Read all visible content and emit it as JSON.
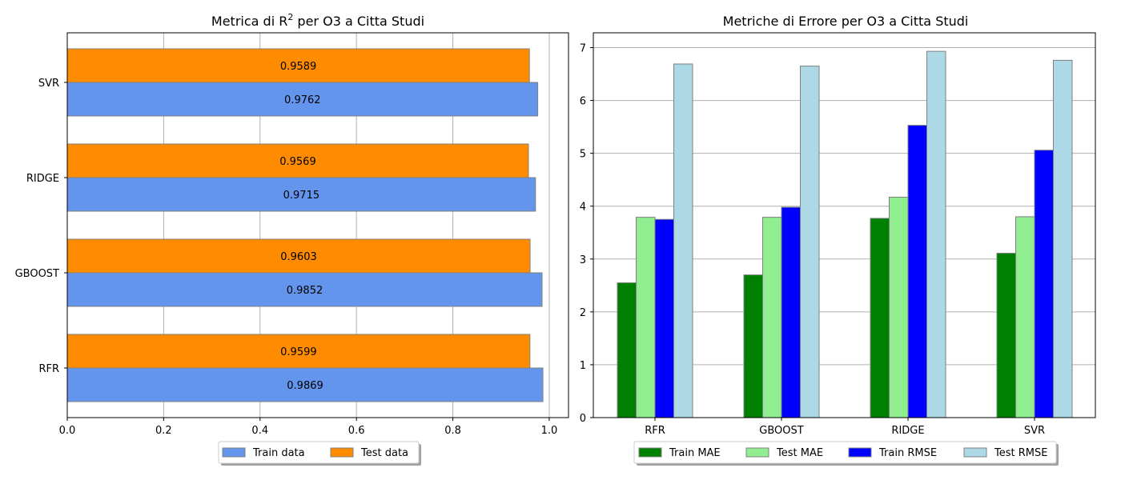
{
  "charts": [
    {
      "title_main": "Metrica di R",
      "title_sup": "2",
      "title_rest": " per O3 a Citta Studi",
      "chart_data": {
        "type": "bar",
        "orientation": "horizontal",
        "categories": [
          "RFR",
          "GBOOST",
          "RIDGE",
          "SVR"
        ],
        "series": [
          {
            "name": "Train data",
            "color": "#6495ed",
            "values": [
              0.9869,
              0.9852,
              0.9715,
              0.9762
            ],
            "labels": [
              "0.9869",
              "0.9852",
              "0.9715",
              "0.9762"
            ]
          },
          {
            "name": "Test data",
            "color": "#ff8c00",
            "values": [
              0.9599,
              0.9603,
              0.9569,
              0.9589
            ],
            "labels": [
              "0.9599",
              "0.9603",
              "0.9569",
              "0.9589"
            ]
          }
        ],
        "xlim": [
          0,
          1.04
        ],
        "xticks": [
          "0.0",
          "0.2",
          "0.4",
          "0.6",
          "0.8",
          "1.0"
        ],
        "grid": true,
        "legend": "bottom-center"
      }
    },
    {
      "title": "Metriche di Errore per O3 a Citta Studi",
      "chart_data": {
        "type": "bar",
        "categories": [
          "RFR",
          "GBOOST",
          "RIDGE",
          "SVR"
        ],
        "series": [
          {
            "name": "Train MAE",
            "color": "#008000",
            "values": [
              2.55,
              2.7,
              3.77,
              3.11
            ]
          },
          {
            "name": "Test MAE",
            "color": "#90ee90",
            "values": [
              3.79,
              3.79,
              4.17,
              3.8
            ]
          },
          {
            "name": "Train RMSE",
            "color": "#0000ff",
            "values": [
              3.75,
              3.98,
              5.53,
              5.06
            ]
          },
          {
            "name": "Test RMSE",
            "color": "#add8e6",
            "values": [
              6.69,
              6.65,
              6.93,
              6.76
            ]
          }
        ],
        "ylim": [
          0,
          7.28
        ],
        "yticks": [
          "0",
          "1",
          "2",
          "3",
          "4",
          "5",
          "6",
          "7"
        ],
        "grid": true,
        "legend": "bottom-center"
      }
    }
  ]
}
